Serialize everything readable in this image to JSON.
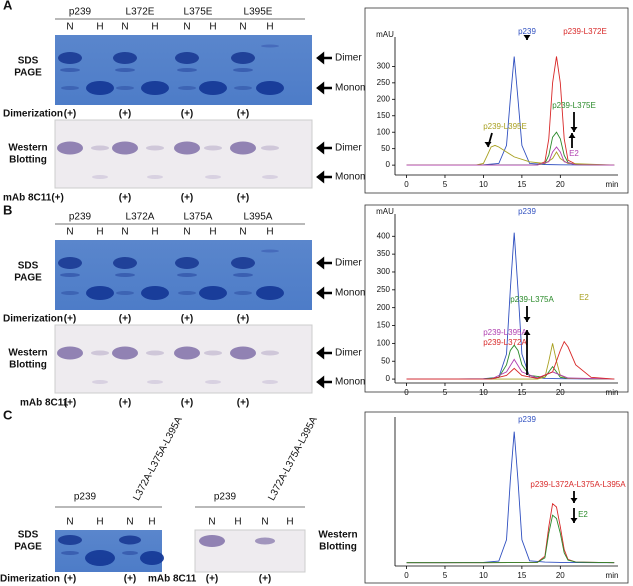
{
  "panels": [
    {
      "label": "A",
      "lanes": [
        "p239",
        "L372E",
        "L375E",
        "L395E"
      ],
      "lane_marks": [
        "N",
        "H"
      ],
      "gel_label": [
        "SDS",
        "PAGE"
      ],
      "blot_label": [
        "Western",
        "Blotting"
      ],
      "bands": [
        "Dimer",
        "Monomer"
      ],
      "dimerization": {
        "label": "Dimerization",
        "signs": [
          "(+)",
          "(+)",
          "(+)",
          "(+)"
        ]
      },
      "antibody": {
        "label": "mAb 8C11(+)",
        "signs": [
          "(+)",
          "(+)",
          "(+)"
        ]
      }
    },
    {
      "label": "B",
      "lanes": [
        "p239",
        "L372A",
        "L375A",
        "L395A"
      ],
      "lane_marks": [
        "N",
        "H"
      ],
      "gel_label": [
        "SDS",
        "PAGE"
      ],
      "blot_label": [
        "Western",
        "Blotting"
      ],
      "bands": [
        "Dimer",
        "Monomer"
      ],
      "dimerization": {
        "label": "Dimerization",
        "signs": [
          "(+)",
          "(+)",
          "(+)",
          "(+)"
        ]
      },
      "antibody": {
        "label": "mAb 8C11",
        "signs": [
          "(+)",
          "(+)",
          "(+)",
          "(+)"
        ]
      }
    },
    {
      "label": "C",
      "lanes": [
        "p239",
        "L372A-L375A-L395A"
      ],
      "lane_marks": [
        "N",
        "H"
      ],
      "gel_label": [
        "SDS",
        "PAGE"
      ],
      "blot_label": [
        "Western",
        "Blotting"
      ],
      "dimerization": {
        "label": "Dimerization",
        "signs": [
          "(+)",
          "(+)"
        ]
      },
      "antibody": {
        "label": "mAb 8C11",
        "signs": [
          "(+)",
          "(+)"
        ]
      }
    }
  ],
  "chromatograms": [
    {
      "type": "line",
      "y_label": "mAU",
      "x_label": "min",
      "xlim": [
        -1.5,
        27.5
      ],
      "ylim": [
        -30,
        365
      ],
      "xticks": [
        0,
        5,
        10,
        15,
        20
      ],
      "yticks": [
        0,
        50,
        100,
        150,
        200,
        250,
        300
      ],
      "series": [
        {
          "name": "p239",
          "color": "#3050c0",
          "x": [
            0,
            5,
            10,
            12,
            13,
            13.5,
            14,
            14.5,
            15,
            16,
            18,
            20,
            25,
            27
          ],
          "values": [
            0,
            0,
            1,
            5,
            60,
            200,
            330,
            200,
            60,
            5,
            2,
            1,
            0,
            0
          ]
        },
        {
          "name": "p239-L372E",
          "color": "#d82828",
          "x": [
            0,
            10,
            17,
            18,
            18.5,
            19,
            19.5,
            20,
            20.5,
            21,
            22,
            25,
            27
          ],
          "values": [
            0,
            0,
            1,
            10,
            80,
            250,
            330,
            250,
            80,
            15,
            3,
            0,
            0
          ]
        },
        {
          "name": "p239-L375E",
          "color": "#2a8a2a",
          "x": [
            0,
            10,
            17,
            18,
            18.5,
            19,
            19.5,
            20,
            20.5,
            21,
            22,
            27
          ],
          "values": [
            0,
            0,
            1,
            5,
            30,
            85,
            100,
            80,
            30,
            8,
            2,
            0
          ]
        },
        {
          "name": "p239-L395E",
          "color": "#a8a020",
          "x": [
            0,
            9,
            10,
            10.5,
            11,
            11.5,
            12,
            13,
            14,
            16,
            18,
            19,
            19.5,
            20,
            21,
            27
          ],
          "values": [
            0,
            0,
            5,
            30,
            55,
            60,
            55,
            40,
            25,
            10,
            5,
            20,
            40,
            20,
            5,
            0
          ]
        },
        {
          "name": "E2",
          "color": "#b040b0",
          "x": [
            0,
            17,
            18.5,
            19,
            19.5,
            20,
            20.5,
            22,
            27
          ],
          "values": [
            0,
            0,
            10,
            40,
            55,
            40,
            10,
            1,
            0
          ]
        }
      ]
    },
    {
      "type": "line",
      "y_label": "mAU",
      "x_label": "min",
      "xlim": [
        -1.5,
        27.5
      ],
      "ylim": [
        -11,
        440
      ],
      "xticks": [
        0,
        5,
        10,
        15,
        20
      ],
      "yticks": [
        0,
        50,
        100,
        150,
        200,
        250,
        300,
        350,
        400
      ],
      "series": [
        {
          "name": "p239",
          "color": "#3050c0",
          "x": [
            0,
            5,
            10,
            12,
            13,
            13.5,
            14,
            14.5,
            15,
            16,
            18,
            20,
            25,
            27
          ],
          "values": [
            0,
            0,
            1,
            5,
            70,
            250,
            410,
            250,
            70,
            6,
            2,
            1,
            0,
            0
          ]
        },
        {
          "name": "p239-L375A",
          "color": "#2a8a2a",
          "x": [
            0,
            10,
            12,
            13,
            13.5,
            14,
            14.5,
            15,
            16,
            18,
            18.5,
            19,
            19.5,
            20,
            21,
            27
          ],
          "values": [
            0,
            0,
            5,
            40,
            80,
            95,
            80,
            40,
            10,
            5,
            20,
            35,
            20,
            5,
            2,
            0
          ]
        },
        {
          "name": "E2",
          "color": "#a8a020",
          "x": [
            0,
            17,
            18,
            18.5,
            19,
            19.5,
            20,
            21,
            27
          ],
          "values": [
            0,
            0,
            5,
            50,
            100,
            50,
            10,
            2,
            0
          ]
        },
        {
          "name": "p239-L395A",
          "color": "#b040b0",
          "x": [
            0,
            11,
            13,
            14,
            15,
            17,
            19,
            21,
            27
          ],
          "values": [
            0,
            0,
            20,
            55,
            20,
            3,
            20,
            3,
            0
          ]
        },
        {
          "name": "p239-L372A",
          "color": "#d82828",
          "x": [
            0,
            11,
            13,
            14,
            15,
            17,
            19,
            20,
            20.5,
            21,
            22,
            24,
            27
          ],
          "values": [
            0,
            0,
            10,
            30,
            10,
            2,
            20,
            80,
            105,
            90,
            40,
            5,
            0
          ]
        }
      ]
    },
    {
      "type": "line",
      "x_label": "min",
      "xlim": [
        -1.5,
        27.5
      ],
      "ylim": [
        -10,
        420
      ],
      "xticks": [
        0,
        5,
        10,
        15,
        20
      ],
      "series": [
        {
          "name": "p239",
          "color": "#3050c0",
          "x": [
            0,
            5,
            10,
            12,
            13,
            13.5,
            14,
            14.5,
            15,
            16,
            18,
            20,
            25,
            27
          ],
          "values": [
            0,
            0,
            1,
            5,
            70,
            250,
            400,
            250,
            70,
            6,
            2,
            1,
            0,
            0
          ]
        },
        {
          "name": "p239-L372A-L375A-L395A",
          "color": "#d82828",
          "x": [
            0,
            10,
            17,
            18,
            18.5,
            19,
            19.5,
            20,
            20.5,
            21,
            22,
            27
          ],
          "values": [
            0,
            0,
            1,
            20,
            110,
            180,
            170,
            110,
            40,
            10,
            2,
            0
          ]
        },
        {
          "name": "E2",
          "color": "#2a8a2a",
          "x": [
            0,
            10,
            17,
            18,
            18.5,
            19,
            19.5,
            20,
            20.5,
            21,
            22,
            27
          ],
          "values": [
            0,
            0,
            1,
            15,
            90,
            145,
            135,
            90,
            30,
            8,
            2,
            0
          ]
        }
      ]
    }
  ]
}
